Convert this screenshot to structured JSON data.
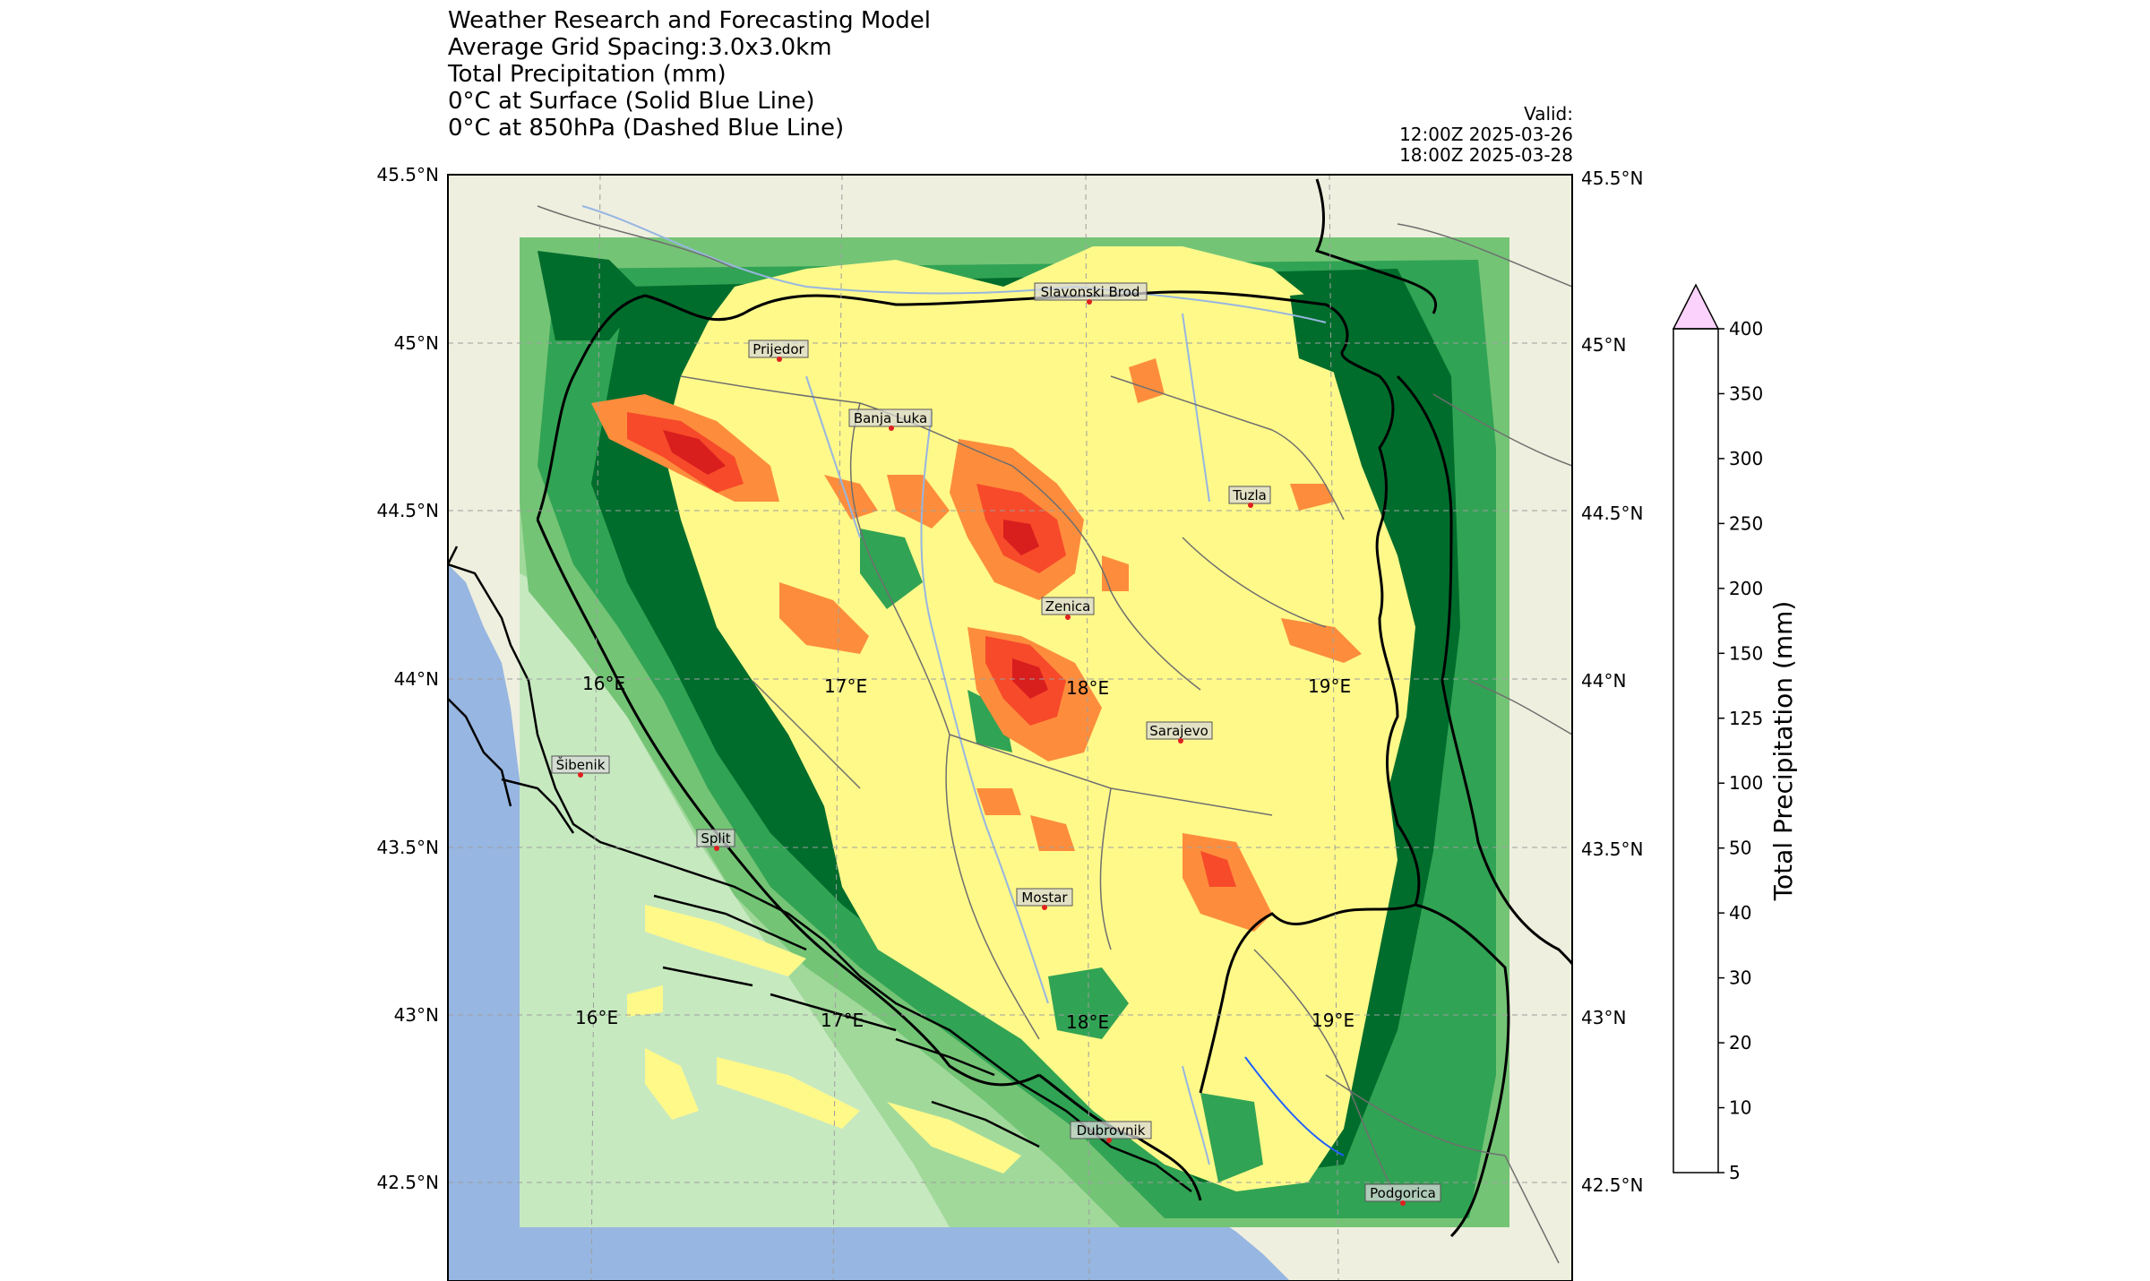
{
  "title_lines": [
    "Weather Research and Forecasting Model",
    "Average Grid Spacing:3.0x3.0km",
    "Total Precipitation (mm)",
    "0°C at Surface (Solid Blue Line)",
    "0°C at 850hPa (Dashed Blue Line)"
  ],
  "valid": {
    "label": "Valid:",
    "start": "12:00Z 2025-03-26",
    "end": "18:00Z 2025-03-28"
  },
  "lat_labels": [
    "45.5°N",
    "45°N",
    "44.5°N",
    "44°N",
    "43.5°N",
    "43°N",
    "42.5°N"
  ],
  "lon_labels": [
    "16°E",
    "17°E",
    "18°E",
    "19°E"
  ],
  "cities": [
    {
      "name": "Slavonski Brod"
    },
    {
      "name": "Prijedor"
    },
    {
      "name": "Banja Luka"
    },
    {
      "name": "Tuzla"
    },
    {
      "name": "Zenica"
    },
    {
      "name": "Sarajevo"
    },
    {
      "name": "Šibenik"
    },
    {
      "name": "Split"
    },
    {
      "name": "Mostar"
    },
    {
      "name": "Dubrovnik"
    },
    {
      "name": "Podgorica"
    }
  ],
  "colorbar": {
    "title": "Total Precipitation (mm)",
    "ticks": [
      "5",
      "10",
      "20",
      "30",
      "40",
      "50",
      "100",
      "125",
      "150",
      "200",
      "250",
      "300",
      "350",
      "400"
    ],
    "colors": [
      "#c7e9c0",
      "#a1d99b",
      "#74c476",
      "#31a354",
      "#006d2c",
      "#fff98a",
      "#fd8d3c",
      "#f74a2a",
      "#d91e1e",
      "#a50f26",
      "#7a0a24",
      "#3e0035",
      "#fbd2fb"
    ]
  },
  "colors": {
    "land": "#efefdf",
    "sea": "#97b6e1",
    "low": "#c7e9c0",
    "mid": "#74c476",
    "high": "#31a354",
    "dark": "#006d2c",
    "yellow": "#fff98a",
    "orange": "#fd8d3c",
    "red": "#f74a2a",
    "darkred": "#d91e1e"
  }
}
